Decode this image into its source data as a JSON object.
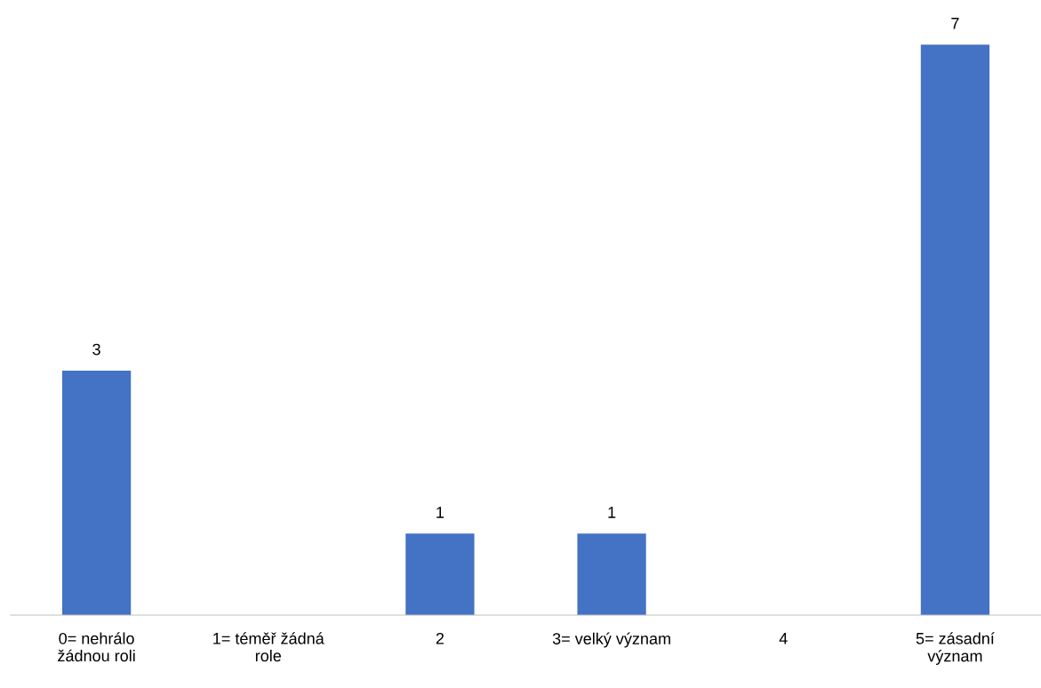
{
  "chart_data": {
    "type": "bar",
    "categories": [
      "0= nehrálo\nžádnou roli",
      "1= téměř žádná\nrole",
      "2",
      "3= velký význam",
      "4",
      "5= zásadní\nvýznam"
    ],
    "values": [
      3,
      0,
      1,
      1,
      0,
      7
    ],
    "value_labels": [
      "3",
      null,
      "1",
      "1",
      null,
      "7"
    ],
    "color": "#4472c4",
    "grid": false,
    "legend": false,
    "tick_labels": "x"
  }
}
